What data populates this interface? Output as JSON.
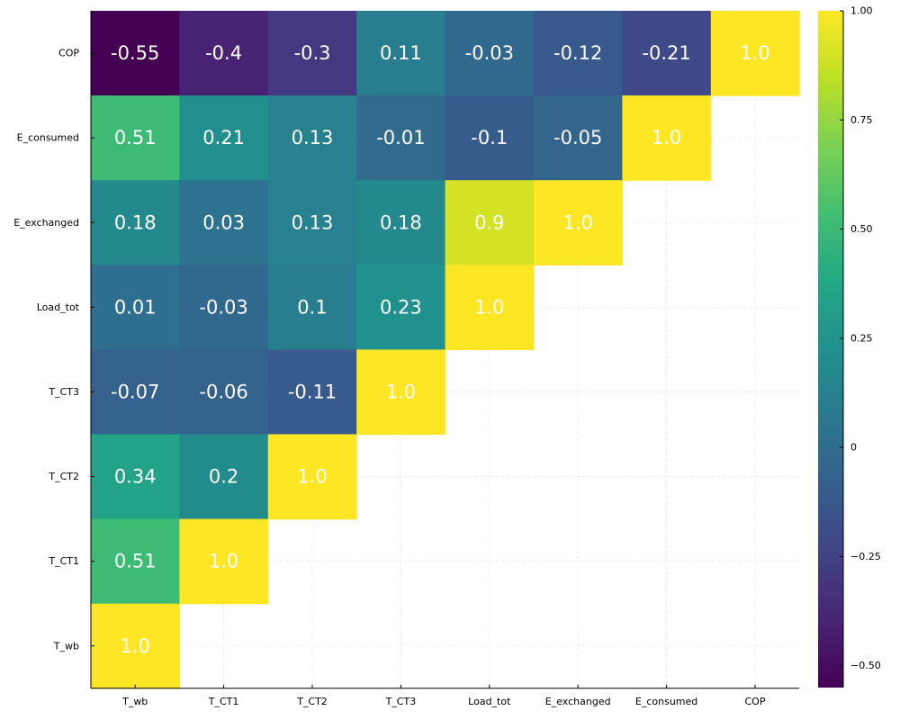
{
  "chart_data": {
    "type": "heatmap",
    "title": "",
    "xlabel": "",
    "ylabel": "",
    "x_categories": [
      "T_wb",
      "T_CT1",
      "T_CT2",
      "T_CT3",
      "Load_tot",
      "E_exchanged",
      "E_consumed",
      "COP"
    ],
    "y_categories": [
      "T_wb",
      "T_CT1",
      "T_CT2",
      "T_CT3",
      "Load_tot",
      "E_exchanged",
      "E_consumed",
      "COP"
    ],
    "cells": [
      {
        "row": "COP",
        "col": "T_wb",
        "value": -0.55,
        "label": "-0.55"
      },
      {
        "row": "COP",
        "col": "T_CT1",
        "value": -0.4,
        "label": "-0.4"
      },
      {
        "row": "COP",
        "col": "T_CT2",
        "value": -0.3,
        "label": "-0.3"
      },
      {
        "row": "COP",
        "col": "T_CT3",
        "value": 0.11,
        "label": "0.11"
      },
      {
        "row": "COP",
        "col": "Load_tot",
        "value": -0.03,
        "label": "-0.03"
      },
      {
        "row": "COP",
        "col": "E_exchanged",
        "value": -0.12,
        "label": "-0.12"
      },
      {
        "row": "COP",
        "col": "E_consumed",
        "value": -0.21,
        "label": "-0.21"
      },
      {
        "row": "COP",
        "col": "COP",
        "value": 1.0,
        "label": "1.0"
      },
      {
        "row": "E_consumed",
        "col": "T_wb",
        "value": 0.51,
        "label": "0.51"
      },
      {
        "row": "E_consumed",
        "col": "T_CT1",
        "value": 0.21,
        "label": "0.21"
      },
      {
        "row": "E_consumed",
        "col": "T_CT2",
        "value": 0.13,
        "label": "0.13"
      },
      {
        "row": "E_consumed",
        "col": "T_CT3",
        "value": -0.01,
        "label": "-0.01"
      },
      {
        "row": "E_consumed",
        "col": "Load_tot",
        "value": -0.1,
        "label": "-0.1"
      },
      {
        "row": "E_consumed",
        "col": "E_exchanged",
        "value": -0.05,
        "label": "-0.05"
      },
      {
        "row": "E_consumed",
        "col": "E_consumed",
        "value": 1.0,
        "label": "1.0"
      },
      {
        "row": "E_exchanged",
        "col": "T_wb",
        "value": 0.18,
        "label": "0.18"
      },
      {
        "row": "E_exchanged",
        "col": "T_CT1",
        "value": 0.03,
        "label": "0.03"
      },
      {
        "row": "E_exchanged",
        "col": "T_CT2",
        "value": 0.13,
        "label": "0.13"
      },
      {
        "row": "E_exchanged",
        "col": "T_CT3",
        "value": 0.18,
        "label": "0.18"
      },
      {
        "row": "E_exchanged",
        "col": "Load_tot",
        "value": 0.9,
        "label": "0.9"
      },
      {
        "row": "E_exchanged",
        "col": "E_exchanged",
        "value": 1.0,
        "label": "1.0"
      },
      {
        "row": "Load_tot",
        "col": "T_wb",
        "value": 0.01,
        "label": "0.01"
      },
      {
        "row": "Load_tot",
        "col": "T_CT1",
        "value": -0.03,
        "label": "-0.03"
      },
      {
        "row": "Load_tot",
        "col": "T_CT2",
        "value": 0.1,
        "label": "0.1"
      },
      {
        "row": "Load_tot",
        "col": "T_CT3",
        "value": 0.23,
        "label": "0.23"
      },
      {
        "row": "Load_tot",
        "col": "Load_tot",
        "value": 1.0,
        "label": "1.0"
      },
      {
        "row": "T_CT3",
        "col": "T_wb",
        "value": -0.07,
        "label": "-0.07"
      },
      {
        "row": "T_CT3",
        "col": "T_CT1",
        "value": -0.06,
        "label": "-0.06"
      },
      {
        "row": "T_CT3",
        "col": "T_CT2",
        "value": -0.11,
        "label": "-0.11"
      },
      {
        "row": "T_CT3",
        "col": "T_CT3",
        "value": 1.0,
        "label": "1.0"
      },
      {
        "row": "T_CT2",
        "col": "T_wb",
        "value": 0.34,
        "label": "0.34"
      },
      {
        "row": "T_CT2",
        "col": "T_CT1",
        "value": 0.2,
        "label": "0.2"
      },
      {
        "row": "T_CT2",
        "col": "T_CT2",
        "value": 1.0,
        "label": "1.0"
      },
      {
        "row": "T_CT1",
        "col": "T_wb",
        "value": 0.51,
        "label": "0.51"
      },
      {
        "row": "T_CT1",
        "col": "T_CT1",
        "value": 1.0,
        "label": "1.0"
      },
      {
        "row": "T_wb",
        "col": "T_wb",
        "value": 1.0,
        "label": "1.0"
      }
    ],
    "colorscale": "viridis",
    "color_range": [
      -0.55,
      1.0
    ],
    "colorbar_ticks": [
      -0.5,
      -0.25,
      0,
      0.25,
      0.5,
      0.75,
      1.0
    ],
    "colorbar_tick_labels": [
      "−0.50",
      "−0.25",
      "0",
      "0.25",
      "0.50",
      "0.75",
      "1.00"
    ],
    "grid": true,
    "legend": "colorbar-right"
  }
}
